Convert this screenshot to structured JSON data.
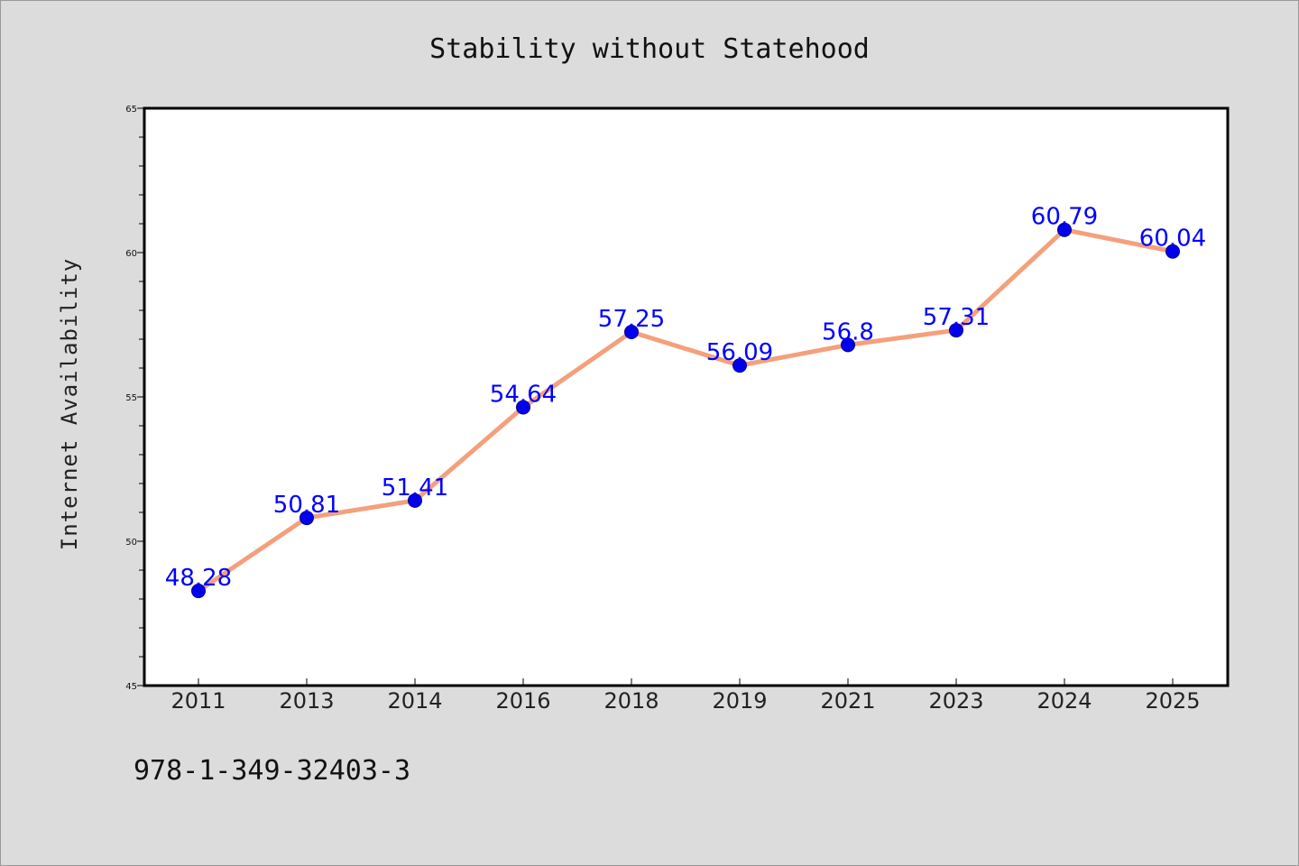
{
  "chart_data": {
    "type": "line",
    "title": "Stability without Statehood",
    "ylabel": "Internet Availability",
    "xlabel": "",
    "categories": [
      "2011",
      "2013",
      "2014",
      "2016",
      "2018",
      "2019",
      "2021",
      "2023",
      "2024",
      "2025"
    ],
    "series": [
      {
        "values": [
          48.28,
          50.81,
          51.41,
          54.64,
          57.25,
          56.09,
          56.8,
          57.31,
          60.79,
          60.04
        ]
      }
    ],
    "data_labels": [
      "48.28",
      "50.81",
      "51.41",
      "54.64",
      "57.25",
      "56.09",
      "56.8",
      "57.31",
      "60.79",
      "60.04"
    ],
    "ylim": [
      45,
      65
    ],
    "yticks": [
      45,
      50,
      55,
      60,
      65
    ],
    "ytick_labels": [
      "45",
      "50",
      "55",
      "60",
      "65"
    ],
    "minor_ytick_step": 1,
    "grid": false,
    "legend": "none",
    "colors": {
      "line": "#f4a07c",
      "marker": "#0000ee",
      "data_label": "#0000ff",
      "background": "#dcdcdc",
      "plot_background": "#ffffff"
    }
  },
  "footer": {
    "isbn": "978-1-349-32403-3"
  }
}
